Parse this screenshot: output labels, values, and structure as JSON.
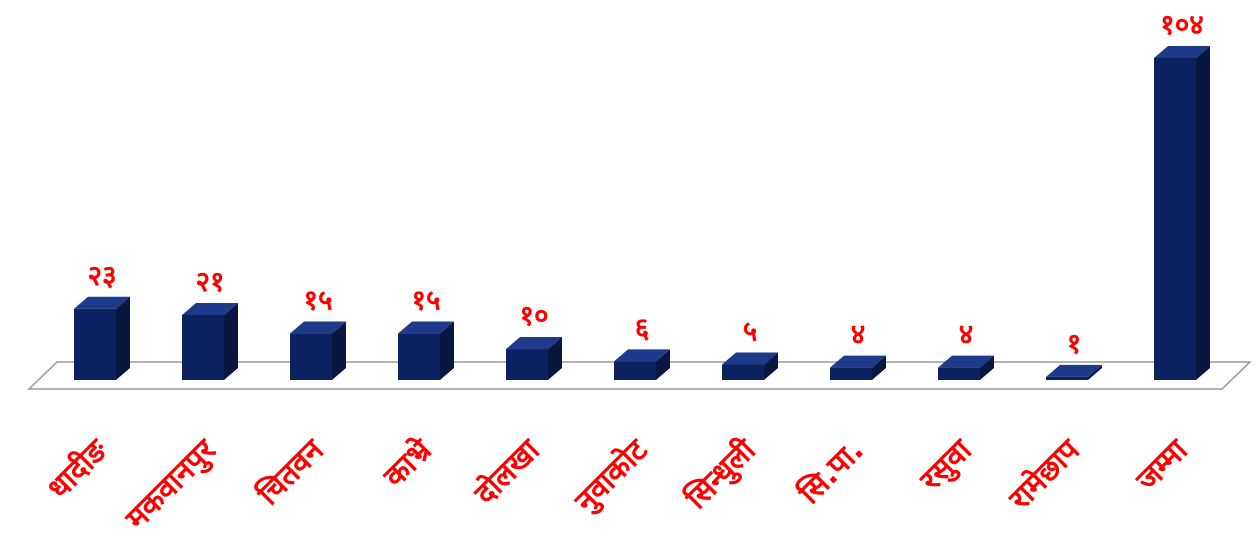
{
  "chart_data": {
    "type": "bar",
    "categories": [
      "धादीङ",
      "मकवानपुर",
      "चितवन",
      "काभ्रे",
      "दोलखा",
      "नुवाकोट",
      "सिन्धुली",
      "सि.पा.",
      "रसुवा",
      "रामेछाप",
      "जम्मा"
    ],
    "values": [
      23,
      21,
      15,
      15,
      10,
      6,
      5,
      4,
      4,
      1,
      104
    ],
    "value_labels": [
      "२३",
      "२१",
      "१५",
      "१५",
      "१०",
      "६",
      "५",
      "४",
      "४",
      "१",
      "१०४"
    ],
    "title": "",
    "xlabel": "",
    "ylabel": "",
    "ylim": [
      0,
      104
    ],
    "grid": false,
    "legend": "none",
    "style": "3d-column"
  },
  "colors": {
    "bar_front": "#0c2160",
    "bar_top": "#1e3a8a",
    "bar_side": "#081640",
    "labels": "#ff0000",
    "floor_stroke": "#9a9a9a",
    "floor_fill": "#ffffff"
  }
}
